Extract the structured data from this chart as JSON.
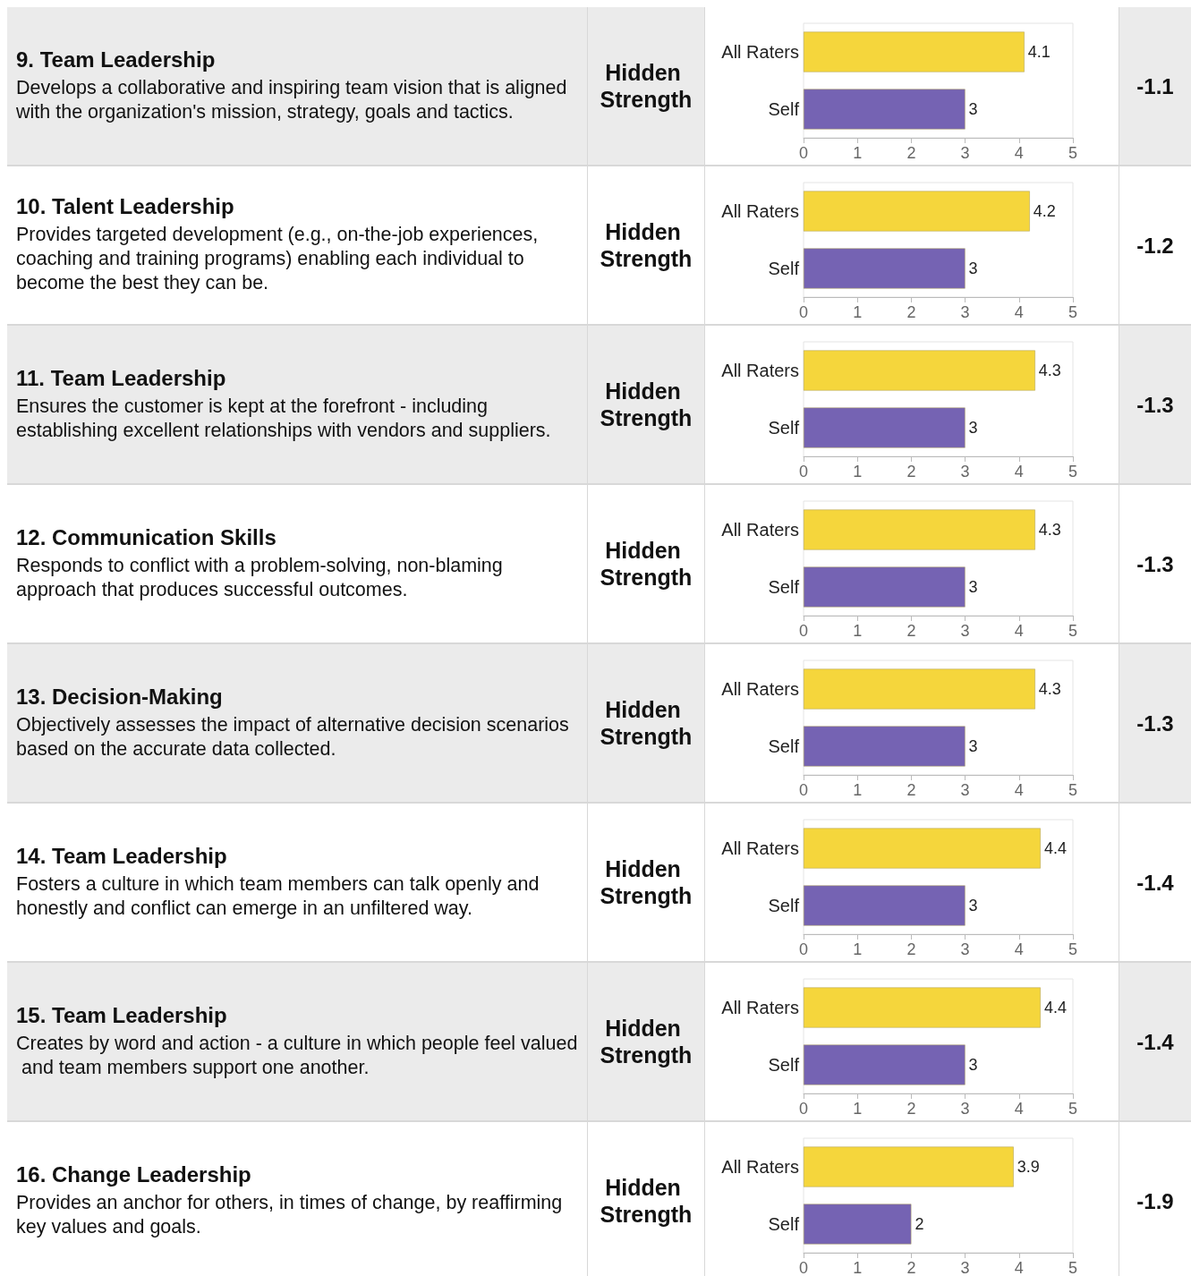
{
  "chart_data": [
    {
      "type": "bar",
      "orientation": "horizontal",
      "annotations": [
        "9. Team Leadership",
        "Develops a collaborative and inspiring team vision that is aligned with the organization's mission, strategy, goals and tactics.",
        "Hidden Strength",
        "-1.1"
      ],
      "categories": [
        "All Raters",
        "Self"
      ],
      "values": [
        4.1,
        3
      ],
      "colors": [
        "#f5d63c",
        "#7563b3"
      ],
      "xlim": [
        0,
        5
      ],
      "xticks": [
        0,
        1,
        2,
        3,
        4,
        5
      ],
      "data_labels": true
    },
    {
      "type": "bar",
      "orientation": "horizontal",
      "annotations": [
        "10. Talent Leadership",
        "Provides targeted development (e.g., on-the-job experiences, coaching and training programs) enabling each individual to become the best they can be.",
        "Hidden Strength",
        "-1.2"
      ],
      "categories": [
        "All Raters",
        "Self"
      ],
      "values": [
        4.2,
        3
      ],
      "colors": [
        "#f5d63c",
        "#7563b3"
      ],
      "xlim": [
        0,
        5
      ],
      "xticks": [
        0,
        1,
        2,
        3,
        4,
        5
      ],
      "data_labels": true
    },
    {
      "type": "bar",
      "orientation": "horizontal",
      "annotations": [
        "11. Team Leadership",
        "Ensures the customer is kept at the forefront - including establishing excellent relationships with vendors and suppliers.",
        "Hidden Strength",
        "-1.3"
      ],
      "categories": [
        "All Raters",
        "Self"
      ],
      "values": [
        4.3,
        3
      ],
      "colors": [
        "#f5d63c",
        "#7563b3"
      ],
      "xlim": [
        0,
        5
      ],
      "xticks": [
        0,
        1,
        2,
        3,
        4,
        5
      ],
      "data_labels": true
    },
    {
      "type": "bar",
      "orientation": "horizontal",
      "annotations": [
        "12. Communication Skills",
        "Responds to conflict with a problem-solving, non-blaming approach that produces successful outcomes.",
        "Hidden Strength",
        "-1.3"
      ],
      "categories": [
        "All Raters",
        "Self"
      ],
      "values": [
        4.3,
        3
      ],
      "colors": [
        "#f5d63c",
        "#7563b3"
      ],
      "xlim": [
        0,
        5
      ],
      "xticks": [
        0,
        1,
        2,
        3,
        4,
        5
      ],
      "data_labels": true
    },
    {
      "type": "bar",
      "orientation": "horizontal",
      "annotations": [
        "13. Decision-Making",
        "Objectively assesses the impact of alternative decision scenarios based on the accurate data collected.",
        "Hidden Strength",
        "-1.3"
      ],
      "categories": [
        "All Raters",
        "Self"
      ],
      "values": [
        4.3,
        3
      ],
      "colors": [
        "#f5d63c",
        "#7563b3"
      ],
      "xlim": [
        0,
        5
      ],
      "xticks": [
        0,
        1,
        2,
        3,
        4,
        5
      ],
      "data_labels": true
    },
    {
      "type": "bar",
      "orientation": "horizontal",
      "annotations": [
        "14. Team Leadership",
        "Fosters a culture in which team members can talk openly and honestly and conflict can emerge in an unfiltered way.",
        "Hidden Strength",
        "-1.4"
      ],
      "categories": [
        "All Raters",
        "Self"
      ],
      "values": [
        4.4,
        3
      ],
      "colors": [
        "#f5d63c",
        "#7563b3"
      ],
      "xlim": [
        0,
        5
      ],
      "xticks": [
        0,
        1,
        2,
        3,
        4,
        5
      ],
      "data_labels": true
    },
    {
      "type": "bar",
      "orientation": "horizontal",
      "annotations": [
        "15. Team Leadership",
        "Creates by word and action - a culture in which people feel valued and team members support one another.",
        "Hidden Strength",
        "-1.4"
      ],
      "categories": [
        "All Raters",
        "Self"
      ],
      "values": [
        4.4,
        3
      ],
      "colors": [
        "#f5d63c",
        "#7563b3"
      ],
      "xlim": [
        0,
        5
      ],
      "xticks": [
        0,
        1,
        2,
        3,
        4,
        5
      ],
      "data_labels": true
    },
    {
      "type": "bar",
      "orientation": "horizontal",
      "annotations": [
        "16. Change Leadership",
        "Provides an anchor for others, in times of change, by reaffirming key values and goals.",
        "Hidden Strength",
        "-1.9"
      ],
      "categories": [
        "All Raters",
        "Self"
      ],
      "values": [
        3.9,
        2
      ],
      "colors": [
        "#f5d63c",
        "#7563b3"
      ],
      "xlim": [
        0,
        5
      ],
      "xticks": [
        0,
        1,
        2,
        3,
        4,
        5
      ],
      "data_labels": true
    }
  ]
}
